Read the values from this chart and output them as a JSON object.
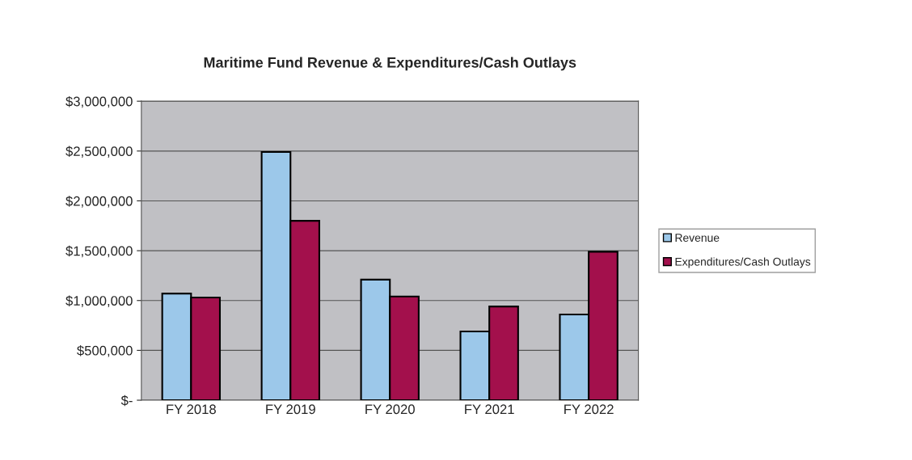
{
  "chart_data": {
    "type": "bar",
    "title": "Maritime Fund Revenue & Expenditures/Cash Outlays",
    "categories": [
      "FY 2018",
      "FY 2019",
      "FY 2020",
      "FY 2021",
      "FY 2022"
    ],
    "series": [
      {
        "name": "Revenue",
        "color": "#9cc8ea",
        "values": [
          1070000,
          2490000,
          1210000,
          690000,
          860000
        ]
      },
      {
        "name": "Expenditures/Cash Outlays",
        "color": "#a3104c",
        "values": [
          1030000,
          1800000,
          1040000,
          940000,
          1490000
        ]
      }
    ],
    "ylim": [
      0,
      3000000
    ],
    "yticks": [
      {
        "value": 0,
        "label": "$-"
      },
      {
        "value": 500000,
        "label": "$500,000"
      },
      {
        "value": 1000000,
        "label": "$1,000,000"
      },
      {
        "value": 1500000,
        "label": "$1,500,000"
      },
      {
        "value": 2000000,
        "label": "$2,000,000"
      },
      {
        "value": 2500000,
        "label": "$2,500,000"
      },
      {
        "value": 3000000,
        "label": "$3,000,000"
      }
    ],
    "grid": "y",
    "legend": "right"
  }
}
